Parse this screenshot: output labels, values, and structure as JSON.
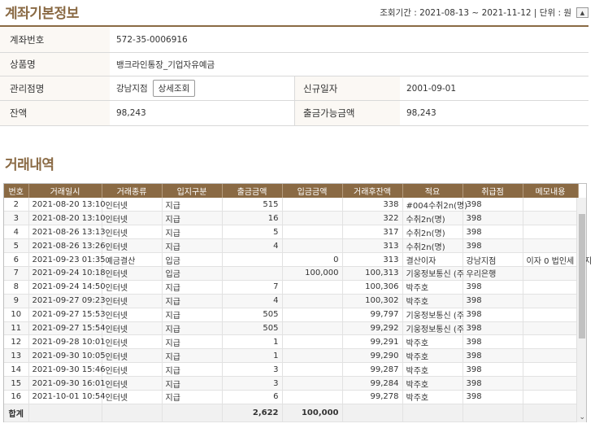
{
  "account": {
    "title": "계좌기본정보",
    "period_text": "조회기간 : 2021-08-13 ~ 2021-11-12 | 단위 : 원",
    "fields": {
      "acct_no_label": "계좌번호",
      "acct_no": "572-35-0006916",
      "product_label": "상품명",
      "product": "뱅크라인통장_기업자유예금",
      "branch_label": "관리점명",
      "branch": "강남지점",
      "detail_btn": "상세조회",
      "opened_label": "신규일자",
      "opened": "2001-09-01",
      "balance_label": "잔액",
      "balance": "98,243",
      "avail_label": "출금가능금액",
      "avail": "98,243"
    }
  },
  "tx": {
    "title": "거래내역",
    "headers": [
      "번호",
      "거래일시",
      "거래종류",
      "입지구분",
      "출금금액",
      "입금금액",
      "거래후잔액",
      "적요",
      "취급점",
      "메모내용"
    ],
    "rows": [
      [
        "2",
        "2021-08-20 13:10",
        "인터넷",
        "지급",
        "515",
        "",
        "338",
        "#004수취2n(명)",
        "398",
        ""
      ],
      [
        "3",
        "2021-08-20 13:10",
        "인터넷",
        "지급",
        "16",
        "",
        "322",
        "수취2n(명)",
        "398",
        ""
      ],
      [
        "4",
        "2021-08-26 13:13",
        "인터넷",
        "지급",
        "5",
        "",
        "317",
        "수취2n(명)",
        "398",
        ""
      ],
      [
        "5",
        "2021-08-26 13:26",
        "인터넷",
        "지급",
        "4",
        "",
        "313",
        "수취2n(명)",
        "398",
        ""
      ],
      [
        "6",
        "2021-09-23 01:35",
        "예금결산",
        "입금",
        "",
        "0",
        "313",
        "결산이자",
        "강남지점",
        "이자 0 법인세 0 지"
      ],
      [
        "7",
        "2021-09-24 10:18",
        "인터넷",
        "입금",
        "",
        "100,000",
        "100,313",
        "기웅정보통신 (주",
        "우리은행",
        ""
      ],
      [
        "8",
        "2021-09-24 14:50",
        "인터넷",
        "지급",
        "7",
        "",
        "100,306",
        "박주호",
        "398",
        ""
      ],
      [
        "9",
        "2021-09-27 09:23",
        "인터넷",
        "지급",
        "4",
        "",
        "100,302",
        "박주호",
        "398",
        ""
      ],
      [
        "10",
        "2021-09-27 15:53",
        "인터넷",
        "지급",
        "505",
        "",
        "99,797",
        "기웅정보통신 (주",
        "398",
        ""
      ],
      [
        "11",
        "2021-09-27 15:54",
        "인터넷",
        "지급",
        "505",
        "",
        "99,292",
        "기웅정보통신 (주",
        "398",
        ""
      ],
      [
        "12",
        "2021-09-28 10:01",
        "인터넷",
        "지급",
        "1",
        "",
        "99,291",
        "박주호",
        "398",
        ""
      ],
      [
        "13",
        "2021-09-30 10:05",
        "인터넷",
        "지급",
        "1",
        "",
        "99,290",
        "박주호",
        "398",
        ""
      ],
      [
        "14",
        "2021-09-30 15:46",
        "인터넷",
        "지급",
        "3",
        "",
        "99,287",
        "박주호",
        "398",
        ""
      ],
      [
        "15",
        "2021-09-30 16:01",
        "인터넷",
        "지급",
        "3",
        "",
        "99,284",
        "박주호",
        "398",
        ""
      ],
      [
        "16",
        "2021-10-01 10:54",
        "인터넷",
        "지급",
        "6",
        "",
        "99,278",
        "박주호",
        "398",
        ""
      ]
    ],
    "sum_label": "합계",
    "sum_out": "2,622",
    "sum_in": "100,000"
  }
}
